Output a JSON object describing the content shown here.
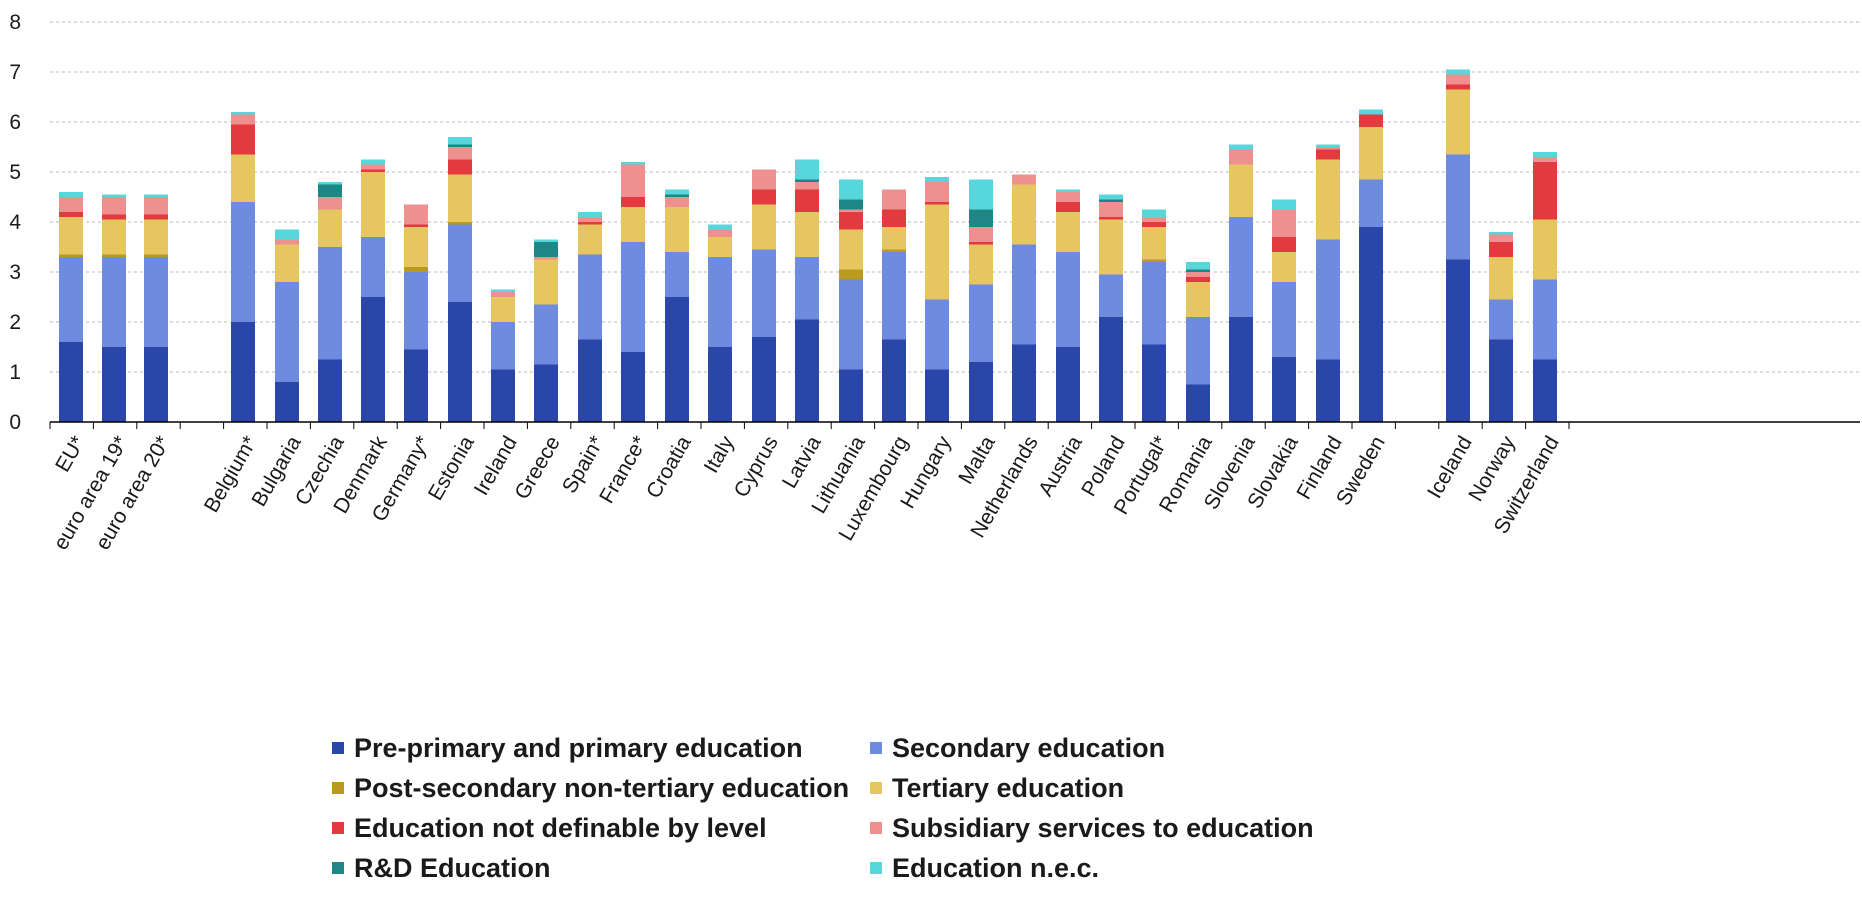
{
  "chart_data": {
    "type": "bar",
    "stacked": true,
    "ylim": [
      0,
      8
    ],
    "yticks": [
      0,
      1,
      2,
      3,
      4,
      5,
      6,
      7,
      8
    ],
    "grid": true,
    "legend_position": "bottom",
    "categories": [
      "EU*",
      "euro area 19*",
      "euro area 20*",
      "Belgium*",
      "Bulgaria",
      "Czechia",
      "Denmark",
      "Germany*",
      "Estonia",
      "Ireland",
      "Greece",
      "Spain*",
      "France*",
      "Croatia",
      "Italy",
      "Cyprus",
      "Latvia",
      "Lithuania",
      "Luxembourg",
      "Hungary",
      "Malta",
      "Netherlands",
      "Austria",
      "Poland",
      "Portugal*",
      "Romania",
      "Slovenia",
      "Slovakia",
      "Finland",
      "Sweden",
      "Iceland",
      "Norway",
      "Switzerland"
    ],
    "series": [
      {
        "name": "Pre-primary and primary education",
        "color": "#2a46a8",
        "values": [
          1.6,
          1.5,
          1.5,
          2.0,
          0.8,
          1.25,
          2.5,
          1.45,
          2.4,
          1.05,
          1.15,
          1.65,
          1.4,
          2.5,
          1.5,
          1.7,
          2.05,
          1.05,
          1.65,
          1.05,
          1.2,
          1.55,
          1.5,
          2.1,
          1.55,
          0.75,
          2.1,
          1.3,
          1.25,
          3.9,
          3.25,
          1.65,
          1.25
        ]
      },
      {
        "name": "Secondary education",
        "color": "#6e8bdf",
        "values": [
          1.7,
          1.8,
          1.8,
          2.4,
          2.0,
          2.25,
          1.2,
          1.55,
          1.55,
          0.95,
          1.2,
          1.7,
          2.2,
          0.9,
          1.8,
          1.75,
          1.25,
          1.8,
          1.75,
          1.4,
          1.55,
          2.0,
          1.9,
          0.85,
          1.65,
          1.35,
          2.0,
          1.5,
          2.4,
          0.95,
          2.1,
          0.8,
          1.6
        ]
      },
      {
        "name": "Post-secondary non-tertiary education",
        "color": "#b99a1e",
        "values": [
          0.05,
          0.05,
          0.05,
          0,
          0,
          0,
          0,
          0.1,
          0.05,
          0,
          0,
          0,
          0,
          0,
          0,
          0,
          0,
          0.2,
          0.05,
          0,
          0,
          0,
          0,
          0,
          0.05,
          0,
          0,
          0,
          0,
          0,
          0,
          0,
          0
        ]
      },
      {
        "name": "Tertiary education",
        "color": "#e6c661",
        "values": [
          0.75,
          0.7,
          0.7,
          0.95,
          0.75,
          0.75,
          1.3,
          0.8,
          0.95,
          0.5,
          0.9,
          0.6,
          0.7,
          0.9,
          0.4,
          0.9,
          0.9,
          0.8,
          0.45,
          1.9,
          0.8,
          1.2,
          0.8,
          1.1,
          0.65,
          0.7,
          1.05,
          0.6,
          1.6,
          1.05,
          1.3,
          0.85,
          1.2
        ]
      },
      {
        "name": "Education not definable by level",
        "color": "#e23a3e",
        "values": [
          0.1,
          0.1,
          0.1,
          0.6,
          0,
          0,
          0.05,
          0.05,
          0.3,
          0,
          0,
          0.05,
          0.2,
          0,
          0,
          0.3,
          0.45,
          0.35,
          0.35,
          0.05,
          0.05,
          0,
          0.2,
          0.05,
          0.1,
          0.1,
          0,
          0.3,
          0.2,
          0.25,
          0.1,
          0.3,
          1.15
        ]
      },
      {
        "name": "Subsidiary services to education",
        "color": "#ee9090",
        "values": [
          0.3,
          0.35,
          0.35,
          0.2,
          0.1,
          0.25,
          0.1,
          0.4,
          0.25,
          0.1,
          0.05,
          0.1,
          0.65,
          0.2,
          0.15,
          0.4,
          0.15,
          0.05,
          0.4,
          0.4,
          0.3,
          0.2,
          0.2,
          0.3,
          0.1,
          0.1,
          0.3,
          0.55,
          0.05,
          0,
          0.2,
          0.15,
          0.1
        ]
      },
      {
        "name": "R&D Education",
        "color": "#1f8686",
        "values": [
          0,
          0,
          0,
          0,
          0,
          0.25,
          0,
          0,
          0.05,
          0,
          0.3,
          0,
          0,
          0.05,
          0,
          0,
          0.05,
          0.2,
          0,
          0,
          0.35,
          0,
          0,
          0.05,
          0,
          0.05,
          0,
          0,
          0,
          0,
          0,
          0,
          0
        ]
      },
      {
        "name": "Education n.e.c.",
        "color": "#57d6db",
        "values": [
          0.1,
          0.05,
          0.05,
          0.05,
          0.2,
          0.05,
          0.1,
          0,
          0.15,
          0.05,
          0.05,
          0.1,
          0.05,
          0.1,
          0.1,
          0,
          0.4,
          0.4,
          0,
          0.1,
          0.6,
          0,
          0.05,
          0.1,
          0.15,
          0.15,
          0.1,
          0.2,
          0.05,
          0.1,
          0.1,
          0.05,
          0.1
        ]
      }
    ]
  }
}
